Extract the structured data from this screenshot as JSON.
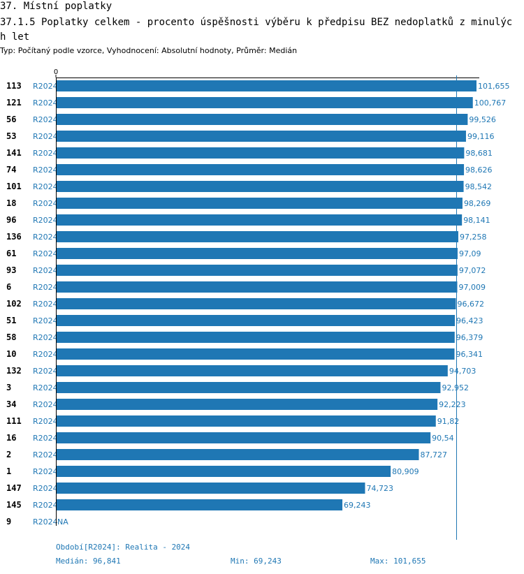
{
  "header": {
    "title": "37. Místní poplatky",
    "subtitle": "37.1.5 Poplatky celkem - procento úspěšnosti výběru k předpisu BEZ nedoplatků z minulých let",
    "type_line": "Typ: Počítaný podle vzorce, Vyhodnocení: Absolutní hodnoty, Průměr: Medián"
  },
  "chart_data": {
    "type": "bar",
    "orientation": "horizontal",
    "title": "37.1.5 Poplatky celkem - procento úspěšnosti výběru k předpisu BEZ nedoplatků z minulých let",
    "xlim": [
      0,
      101.655
    ],
    "x_tick_labels": [
      "0"
    ],
    "series_name": "R2024",
    "median": 96.841,
    "bar_color": "#1f77b4",
    "rows": [
      {
        "category": "113",
        "series": "R2024",
        "value": 101.655,
        "label": "101,655"
      },
      {
        "category": "121",
        "series": "R2024",
        "value": 100.767,
        "label": "100,767"
      },
      {
        "category": "56",
        "series": "R2024",
        "value": 99.526,
        "label": "99,526"
      },
      {
        "category": "53",
        "series": "R2024",
        "value": 99.116,
        "label": "99,116"
      },
      {
        "category": "141",
        "series": "R2024",
        "value": 98.681,
        "label": "98,681"
      },
      {
        "category": "74",
        "series": "R2024",
        "value": 98.626,
        "label": "98,626"
      },
      {
        "category": "101",
        "series": "R2024",
        "value": 98.542,
        "label": "98,542"
      },
      {
        "category": "18",
        "series": "R2024",
        "value": 98.269,
        "label": "98,269"
      },
      {
        "category": "96",
        "series": "R2024",
        "value": 98.141,
        "label": "98,141"
      },
      {
        "category": "136",
        "series": "R2024",
        "value": 97.258,
        "label": "97,258"
      },
      {
        "category": "61",
        "series": "R2024",
        "value": 97.09,
        "label": "97,09"
      },
      {
        "category": "93",
        "series": "R2024",
        "value": 97.072,
        "label": "97,072"
      },
      {
        "category": "6",
        "series": "R2024",
        "value": 97.009,
        "label": "97,009"
      },
      {
        "category": "102",
        "series": "R2024",
        "value": 96.672,
        "label": "96,672"
      },
      {
        "category": "51",
        "series": "R2024",
        "value": 96.423,
        "label": "96,423"
      },
      {
        "category": "58",
        "series": "R2024",
        "value": 96.379,
        "label": "96,379"
      },
      {
        "category": "10",
        "series": "R2024",
        "value": 96.341,
        "label": "96,341"
      },
      {
        "category": "132",
        "series": "R2024",
        "value": 94.703,
        "label": "94,703"
      },
      {
        "category": "3",
        "series": "R2024",
        "value": 92.952,
        "label": "92,952"
      },
      {
        "category": "34",
        "series": "R2024",
        "value": 92.223,
        "label": "92,223"
      },
      {
        "category": "111",
        "series": "R2024",
        "value": 91.82,
        "label": "91,82"
      },
      {
        "category": "16",
        "series": "R2024",
        "value": 90.54,
        "label": "90,54"
      },
      {
        "category": "2",
        "series": "R2024",
        "value": 87.727,
        "label": "87,727"
      },
      {
        "category": "1",
        "series": "R2024",
        "value": 80.909,
        "label": "80,909"
      },
      {
        "category": "147",
        "series": "R2024",
        "value": 74.723,
        "label": "74,723"
      },
      {
        "category": "145",
        "series": "R2024",
        "value": 69.243,
        "label": "69,243"
      },
      {
        "category": "9",
        "series": "R2024",
        "value": null,
        "label": "NA"
      }
    ]
  },
  "footer": {
    "period": "Období[R2024]: Realita - 2024",
    "median": "Medián: 96,841",
    "min": "Min: 69,243",
    "max": "Max: 101,655"
  }
}
